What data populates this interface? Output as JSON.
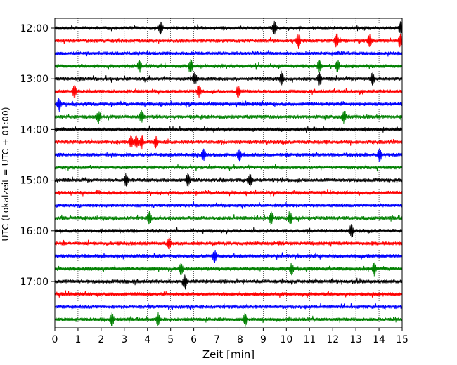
{
  "chart_data": {
    "type": "line",
    "title": "",
    "xlabel": "Zeit  [min]",
    "ylabel": "UTC (Lokalzeit = UTC + 01:00)",
    "xlim": [
      0,
      15
    ],
    "x_ticks": [
      0,
      1,
      2,
      3,
      4,
      5,
      6,
      7,
      8,
      9,
      10,
      11,
      12,
      13,
      14,
      15
    ],
    "y_ticks": [
      "12:00",
      "13:00",
      "14:00",
      "15:00",
      "16:00",
      "17:00"
    ],
    "start_time": "12:00",
    "row_interval_minutes": 15,
    "row_count": 24,
    "color_cycle": [
      "#000000",
      "#ff0000",
      "#0000ff",
      "#008000"
    ],
    "grid": {
      "vertical": true,
      "style": "dotted"
    },
    "legend": "none"
  }
}
